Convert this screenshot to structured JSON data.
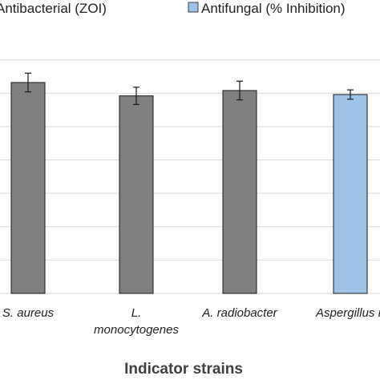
{
  "chart_data": {
    "type": "bar",
    "title": "",
    "xlabel": "Indicator strains",
    "ylabel": "",
    "legend_position": "top",
    "categories": [
      {
        "lines": [
          "S. aureus"
        ],
        "series": "Antibacterial (ZOI)"
      },
      {
        "lines": [
          "L.",
          "monocytogenes"
        ],
        "series": "Antibacterial (ZOI)"
      },
      {
        "lines": [
          "A. radiobacter"
        ],
        "series": "Antibacterial (ZOI)"
      },
      {
        "lines": [
          "Aspergillus n"
        ],
        "series": "Antifungal (% Inhibition)"
      }
    ],
    "values": [
      31.6,
      29.6,
      30.4,
      29.8
    ],
    "errors": [
      1.4,
      1.3,
      1.4,
      0.7
    ],
    "ylim": [
      0,
      40
    ],
    "gridlines": [
      5,
      10,
      15,
      20,
      25,
      30,
      35
    ],
    "grid": true,
    "series": [
      {
        "name": "Antibacterial (ZOI)",
        "color": "#808080"
      },
      {
        "name": "Antifungal (% Inhibition)",
        "color": "#9dc3e6"
      }
    ],
    "edge_color": "#1a1a1a",
    "grid_color": "#d9d9d9"
  }
}
